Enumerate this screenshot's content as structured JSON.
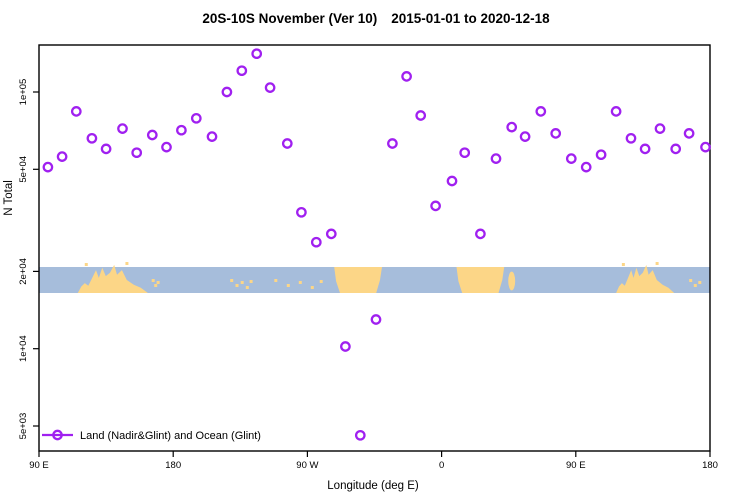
{
  "title": {
    "main": "20S-10S November (Ver 10)",
    "date_range": "2015-01-01 to 2020-12-18"
  },
  "legend": {
    "label": "Land (Nadir&Glint) and Ocean (Glint)",
    "marker": "open-circle-on-line",
    "marker_color": "#A020F0"
  },
  "map_band": {
    "name": "world-map-strip-20S-10S",
    "ocean_color": "#a6bddb",
    "land_color": "#fcd687",
    "segments": [
      {
        "name": "australia",
        "shape": "jagged",
        "deg": [
          26,
          73
        ]
      },
      {
        "name": "melanesia-islands",
        "shape": "dots",
        "deg": [
          75,
          82
        ]
      },
      {
        "name": "fiji-islands",
        "shape": "dots",
        "deg": [
          127,
          142
        ]
      },
      {
        "name": "polynesia-islands",
        "shape": "dots",
        "deg": [
          155,
          190
        ]
      },
      {
        "name": "south-america",
        "shape": "block",
        "deg": [
          198,
          230
        ]
      },
      {
        "name": "africa",
        "shape": "block",
        "deg": [
          280,
          312
        ]
      },
      {
        "name": "madagascar",
        "shape": "islet",
        "deg": [
          314,
          320
        ]
      },
      {
        "name": "australia-repeat",
        "shape": "jagged",
        "deg": [
          387,
          426
        ]
      },
      {
        "name": "melanesia-islands-repeat",
        "shape": "dots",
        "deg": [
          435,
          448
        ]
      }
    ]
  },
  "chart_data": {
    "type": "scatter",
    "title": "20S-10S November (Ver 10)   2015-01-01 to 2020-12-18",
    "xlabel": "Longitude (deg E)",
    "ylabel": "N Total",
    "y_scale": "log",
    "ylim": [
      4000,
      152000
    ],
    "x_axis_note": "x axis spans 450 degrees of longitude starting at 90 E and wrapping eastward past 180 to 180 again",
    "x_ticks": [
      {
        "label": "90 E",
        "deg": 0
      },
      {
        "label": "180",
        "deg": 90
      },
      {
        "label": "90 W",
        "deg": 180
      },
      {
        "label": "0",
        "deg": 270
      },
      {
        "label": "90 E",
        "deg": 360
      },
      {
        "label": "180",
        "deg": 450
      }
    ],
    "y_ticks": [
      {
        "label": "1e+05",
        "value": 100000
      },
      {
        "label": "5e+04",
        "value": 50000
      },
      {
        "label": "2e+04",
        "value": 20000
      },
      {
        "label": "1e+04",
        "value": 10000
      },
      {
        "label": "5e+03",
        "value": 5000
      }
    ],
    "series": [
      {
        "name": "Land (Nadir&Glint) and Ocean (Glint)",
        "marker": "open-circle",
        "color": "#A020F0",
        "points": [
          {
            "lon": "96 E",
            "deg": 6,
            "n": 51000
          },
          {
            "lon": "105 E",
            "deg": 15.5,
            "n": 56000
          },
          {
            "lon": "115 E",
            "deg": 25,
            "n": 84000
          },
          {
            "lon": "126 E",
            "deg": 35.5,
            "n": 66000
          },
          {
            "lon": "135 E",
            "deg": 45,
            "n": 60000
          },
          {
            "lon": "146 E",
            "deg": 56,
            "n": 72000
          },
          {
            "lon": "156 E",
            "deg": 65.5,
            "n": 58000
          },
          {
            "lon": "166 E",
            "deg": 76,
            "n": 68000
          },
          {
            "lon": "176 E",
            "deg": 85.5,
            "n": 61000
          },
          {
            "lon": "174 W",
            "deg": 95.5,
            "n": 71000
          },
          {
            "lon": "164 W",
            "deg": 105.5,
            "n": 79000
          },
          {
            "lon": "154 W",
            "deg": 116,
            "n": 67000
          },
          {
            "lon": "144 W",
            "deg": 126,
            "n": 100000
          },
          {
            "lon": "134 W",
            "deg": 136,
            "n": 121000
          },
          {
            "lon": "124 W",
            "deg": 146,
            "n": 141000
          },
          {
            "lon": "115 W",
            "deg": 155,
            "n": 104000
          },
          {
            "lon": "104 W",
            "deg": 166.5,
            "n": 63000
          },
          {
            "lon": "94 W",
            "deg": 176,
            "n": 34000
          },
          {
            "lon": "84 W",
            "deg": 186,
            "n": 26000
          },
          {
            "lon": "74 W",
            "deg": 196,
            "n": 28000
          },
          {
            "lon": "64 W",
            "deg": 205.5,
            "n": 10200
          },
          {
            "lon": "54 W",
            "deg": 215.5,
            "n": 4600
          },
          {
            "lon": "44 W",
            "deg": 226,
            "n": 13000
          },
          {
            "lon": "33 W",
            "deg": 237,
            "n": 63000
          },
          {
            "lon": "24 W",
            "deg": 246.5,
            "n": 115000
          },
          {
            "lon": "14 W",
            "deg": 256,
            "n": 81000
          },
          {
            "lon": "4 W",
            "deg": 266,
            "n": 36000
          },
          {
            "lon": "7 E",
            "deg": 277,
            "n": 45000
          },
          {
            "lon": "16 E",
            "deg": 285.5,
            "n": 58000
          },
          {
            "lon": "26 E",
            "deg": 296,
            "n": 28000
          },
          {
            "lon": "37 E",
            "deg": 306.5,
            "n": 55000
          },
          {
            "lon": "47 E",
            "deg": 317,
            "n": 73000
          },
          {
            "lon": "56 E",
            "deg": 326,
            "n": 67000
          },
          {
            "lon": "67 E",
            "deg": 336.5,
            "n": 84000
          },
          {
            "lon": "77 E",
            "deg": 346.5,
            "n": 69000
          },
          {
            "lon": "87 E",
            "deg": 357,
            "n": 55000
          },
          {
            "lon": "97 E",
            "deg": 367,
            "n": 51000
          },
          {
            "lon": "107 E",
            "deg": 377,
            "n": 57000
          },
          {
            "lon": "117 E",
            "deg": 387,
            "n": 84000
          },
          {
            "lon": "127 E",
            "deg": 397,
            "n": 66000
          },
          {
            "lon": "137 E",
            "deg": 406.5,
            "n": 60000
          },
          {
            "lon": "147 E",
            "deg": 416.5,
            "n": 72000
          },
          {
            "lon": "157 E",
            "deg": 427,
            "n": 60000
          },
          {
            "lon": "166 E",
            "deg": 436,
            "n": 69000
          },
          {
            "lon": "177 E",
            "deg": 447,
            "n": 61000
          }
        ]
      }
    ]
  }
}
